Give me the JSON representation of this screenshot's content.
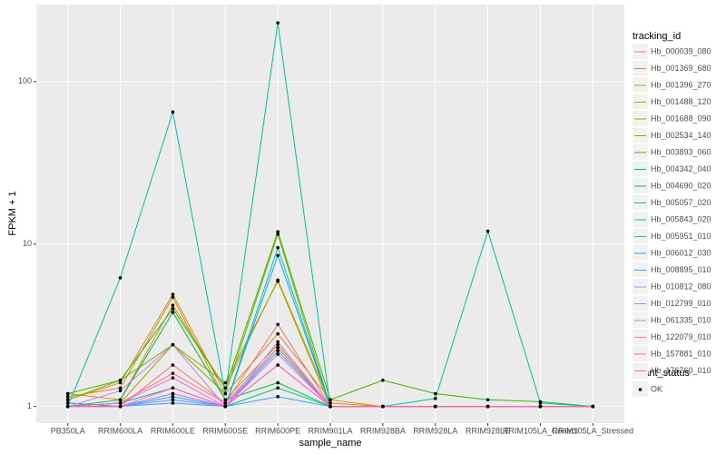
{
  "chart_data": {
    "type": "line",
    "log_y": true,
    "grid": true,
    "legend_position": "right",
    "ylabel": "FPKM + 1",
    "xlabel": "sample_name",
    "legend_title": "tracking_id",
    "point_legend_title": "quant_status",
    "point_legend_label": "OK",
    "point_color": "#000000",
    "ylim": [
      0.79,
      298
    ],
    "yticks": [
      1,
      10,
      100
    ],
    "categories": [
      "PB350LA",
      "RRIM600LA",
      "RRIM600LE",
      "RRIM600SE",
      "RRIM600PE",
      "RRIM901LA",
      "RRIM928BA",
      "RRIM928LA",
      "RRIM928LE",
      "RRIM105LA_Control",
      "RRIM105LA_Stressed"
    ],
    "series": [
      {
        "name": "Hb_000039_080",
        "color": "#F8766D",
        "values": [
          1.05,
          1.0,
          1.8,
          1.05,
          3.2,
          1.0,
          1.0,
          1.0,
          1.0,
          1.0,
          1.0
        ]
      },
      {
        "name": "Hb_001369_680",
        "color": "#EA8331",
        "values": [
          1.1,
          1.4,
          4.9,
          1.2,
          2.8,
          1.1,
          1.0,
          1.0,
          1.0,
          1.0,
          1.0
        ]
      },
      {
        "name": "Hb_001396_270",
        "color": "#D89000",
        "values": [
          1.2,
          1.1,
          4.2,
          1.3,
          6.0,
          1.05,
          1.0,
          1.0,
          1.0,
          1.0,
          1.0
        ]
      },
      {
        "name": "Hb_001488_120",
        "color": "#C09B00",
        "values": [
          1.15,
          1.3,
          4.7,
          1.1,
          2.4,
          1.0,
          1.0,
          1.0,
          1.0,
          1.0,
          1.0
        ]
      },
      {
        "name": "Hb_001688_090",
        "color": "#A3A500",
        "values": [
          1.0,
          1.05,
          2.4,
          1.4,
          5.9,
          1.0,
          1.0,
          1.0,
          1.0,
          1.0,
          1.0
        ]
      },
      {
        "name": "Hb_002534_140",
        "color": "#7CAE00",
        "values": [
          1.1,
          1.45,
          2.4,
          1.2,
          11.5,
          1.0,
          1.0,
          1.0,
          1.0,
          1.0,
          1.0
        ]
      },
      {
        "name": "Hb_003893_060",
        "color": "#39B600",
        "values": [
          1.2,
          1.45,
          4.0,
          1.3,
          11.9,
          1.1,
          1.45,
          1.2,
          1.1,
          1.07,
          1.0
        ]
      },
      {
        "name": "Hb_004342_040",
        "color": "#00BB4E",
        "values": [
          1.0,
          1.1,
          3.8,
          1.1,
          1.4,
          1.0,
          1.0,
          1.0,
          1.0,
          1.0,
          1.0
        ]
      },
      {
        "name": "Hb_004690_020",
        "color": "#00BF7D",
        "values": [
          1.0,
          1.05,
          1.3,
          1.0,
          1.3,
          1.0,
          1.0,
          1.0,
          1.0,
          1.0,
          1.0
        ]
      },
      {
        "name": "Hb_005057_020",
        "color": "#00C1A3",
        "values": [
          1.0,
          6.2,
          65,
          1.2,
          230,
          1.0,
          1.0,
          1.12,
          12,
          1.05,
          1.0
        ]
      },
      {
        "name": "Hb_005843_020",
        "color": "#00BFC4",
        "values": [
          1.0,
          1.0,
          1.2,
          1.0,
          9.5,
          1.0,
          1.0,
          1.0,
          1.0,
          1.0,
          1.0
        ]
      },
      {
        "name": "Hb_005951_010",
        "color": "#00BAE0",
        "values": [
          1.0,
          1.0,
          1.1,
          1.0,
          2.2,
          1.0,
          1.0,
          1.0,
          1.0,
          1.0,
          1.0
        ]
      },
      {
        "name": "Hb_006012_030",
        "color": "#00B0F6",
        "values": [
          1.05,
          1.0,
          1.15,
          1.0,
          8.5,
          1.0,
          1.0,
          1.0,
          1.0,
          1.0,
          1.0
        ]
      },
      {
        "name": "Hb_008895_010",
        "color": "#35A2FF",
        "values": [
          1.0,
          1.0,
          1.05,
          1.0,
          1.15,
          1.0,
          1.0,
          1.0,
          1.0,
          1.0,
          1.0
        ]
      },
      {
        "name": "Hb_010812_080",
        "color": "#9590FF",
        "values": [
          1.0,
          1.0,
          1.1,
          1.0,
          2.3,
          1.0,
          1.0,
          1.0,
          1.0,
          1.0,
          1.0
        ]
      },
      {
        "name": "Hb_012799_010",
        "color": "#C77CFF",
        "values": [
          1.0,
          1.25,
          2.4,
          1.0,
          2.5,
          1.0,
          1.0,
          1.0,
          1.0,
          1.0,
          1.0
        ]
      },
      {
        "name": "Hb_061335_010",
        "color": "#E76BF3",
        "values": [
          1.0,
          1.0,
          1.2,
          1.0,
          2.1,
          1.0,
          1.0,
          1.0,
          1.0,
          1.0,
          1.0
        ]
      },
      {
        "name": "Hb_122079_010",
        "color": "#FA62DB",
        "values": [
          1.0,
          1.05,
          1.5,
          1.0,
          1.8,
          1.0,
          1.0,
          1.0,
          1.0,
          1.0,
          1.0
        ]
      },
      {
        "name": "Hb_157881_010",
        "color": "#FF62BC",
        "values": [
          1.0,
          1.0,
          1.3,
          1.0,
          1.8,
          1.0,
          1.0,
          1.0,
          1.0,
          1.0,
          1.0
        ]
      },
      {
        "name": "Hb_176760_010",
        "color": "#FF6C91",
        "values": [
          1.0,
          1.05,
          1.6,
          1.05,
          2.3,
          1.0,
          1.0,
          1.0,
          1.0,
          1.0,
          1.0
        ]
      }
    ]
  }
}
